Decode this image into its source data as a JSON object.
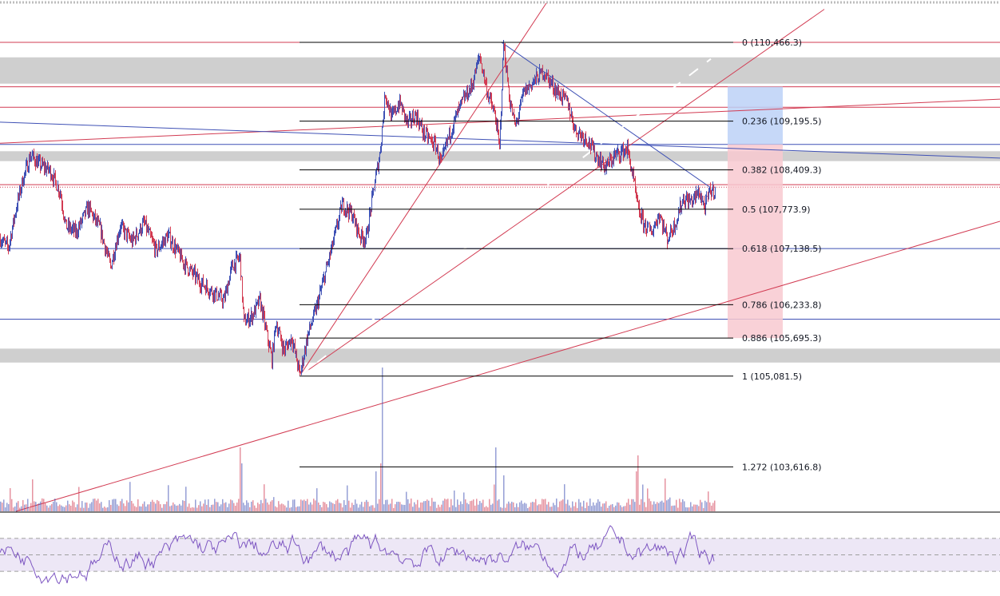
{
  "chart_data": {
    "type": "candlestick",
    "price_axis": {
      "ylim": [
        102900,
        111150
      ]
    },
    "colors": {
      "up": "#3f51b5",
      "down": "#d23b52",
      "fib": "#000000",
      "horizontal_red": "#d23b52",
      "horizontal_blue": "#3f51b5",
      "zone_gray": "#cfcfcf",
      "target_blue": "#bcd1f7",
      "stop_red": "#f8c9d0",
      "rsi_line": "#7e57c2",
      "rsi_band": "#ede7f6"
    },
    "price_path": [
      [
        0,
        107300
      ],
      [
        10,
        107150
      ],
      [
        20,
        107800
      ],
      [
        28,
        108250
      ],
      [
        38,
        108650
      ],
      [
        48,
        108500
      ],
      [
        62,
        108400
      ],
      [
        75,
        108050
      ],
      [
        82,
        107500
      ],
      [
        95,
        107400
      ],
      [
        110,
        107800
      ],
      [
        125,
        107450
      ],
      [
        138,
        106850
      ],
      [
        150,
        107500
      ],
      [
        165,
        107250
      ],
      [
        180,
        107550
      ],
      [
        195,
        107100
      ],
      [
        210,
        107350
      ],
      [
        230,
        106900
      ],
      [
        250,
        106600
      ],
      [
        265,
        106450
      ],
      [
        280,
        106300
      ],
      [
        290,
        106850
      ],
      [
        300,
        107000
      ],
      [
        305,
        105950
      ],
      [
        315,
        106050
      ],
      [
        325,
        106300
      ],
      [
        340,
        105350
      ],
      [
        345,
        105950
      ],
      [
        355,
        105500
      ],
      [
        365,
        105700
      ],
      [
        375,
        105100
      ],
      [
        385,
        105750
      ],
      [
        395,
        106150
      ],
      [
        405,
        106650
      ],
      [
        415,
        107150
      ],
      [
        428,
        107850
      ],
      [
        440,
        107700
      ],
      [
        450,
        107350
      ],
      [
        458,
        107300
      ],
      [
        468,
        108150
      ],
      [
        475,
        108650
      ],
      [
        482,
        109650
      ],
      [
        490,
        109250
      ],
      [
        500,
        109500
      ],
      [
        510,
        109150
      ],
      [
        520,
        109300
      ],
      [
        530,
        109000
      ],
      [
        545,
        108800
      ],
      [
        552,
        108500
      ],
      [
        560,
        108900
      ],
      [
        570,
        109250
      ],
      [
        580,
        109550
      ],
      [
        590,
        109750
      ],
      [
        600,
        110250
      ],
      [
        610,
        109650
      ],
      [
        620,
        109250
      ],
      [
        625,
        108750
      ],
      [
        630,
        110450
      ],
      [
        638,
        109500
      ],
      [
        645,
        109100
      ],
      [
        655,
        109650
      ],
      [
        665,
        109800
      ],
      [
        680,
        110000
      ],
      [
        695,
        109700
      ],
      [
        710,
        109500
      ],
      [
        720,
        109050
      ],
      [
        735,
        108900
      ],
      [
        745,
        108650
      ],
      [
        758,
        108450
      ],
      [
        770,
        108650
      ],
      [
        785,
        108750
      ],
      [
        792,
        108300
      ],
      [
        798,
        107800
      ],
      [
        805,
        107550
      ],
      [
        815,
        107400
      ],
      [
        825,
        107700
      ],
      [
        835,
        107300
      ],
      [
        845,
        107550
      ],
      [
        855,
        107950
      ],
      [
        865,
        107900
      ],
      [
        875,
        108050
      ],
      [
        882,
        107800
      ],
      [
        888,
        108050
      ],
      [
        895,
        108100
      ]
    ],
    "fib_levels": [
      {
        "label": "0 (110,466.3)",
        "value": 110466.3
      },
      {
        "label": "0.236 (109,195.5)",
        "value": 109195.5
      },
      {
        "label": "0.382 (108,409.3)",
        "value": 108409.3
      },
      {
        "label": "0.5 (107,773.9)",
        "value": 107773.9
      },
      {
        "label": "0.618 (107,138.5)",
        "value": 107138.5
      },
      {
        "label": "0.786 (106,233.8)",
        "value": 106233.8
      },
      {
        "label": "0.886 (105,695.3)",
        "value": 105695.3
      },
      {
        "label": "1 (105,081.5)",
        "value": 105081.5
      },
      {
        "label": "1.272 (103,616.8)",
        "value": 103616.8
      }
    ],
    "horizontal_lines_red": [
      110466.3,
      109750,
      109420,
      108170
    ],
    "horizontal_lines_blue": [
      108820,
      107140,
      106000
    ],
    "gray_zones": [
      [
        109800,
        110225
      ],
      [
        108550,
        108710
      ],
      [
        105300,
        105525
      ]
    ],
    "rsi": {
      "upper": 70,
      "lower": 30,
      "mid": 50
    }
  }
}
